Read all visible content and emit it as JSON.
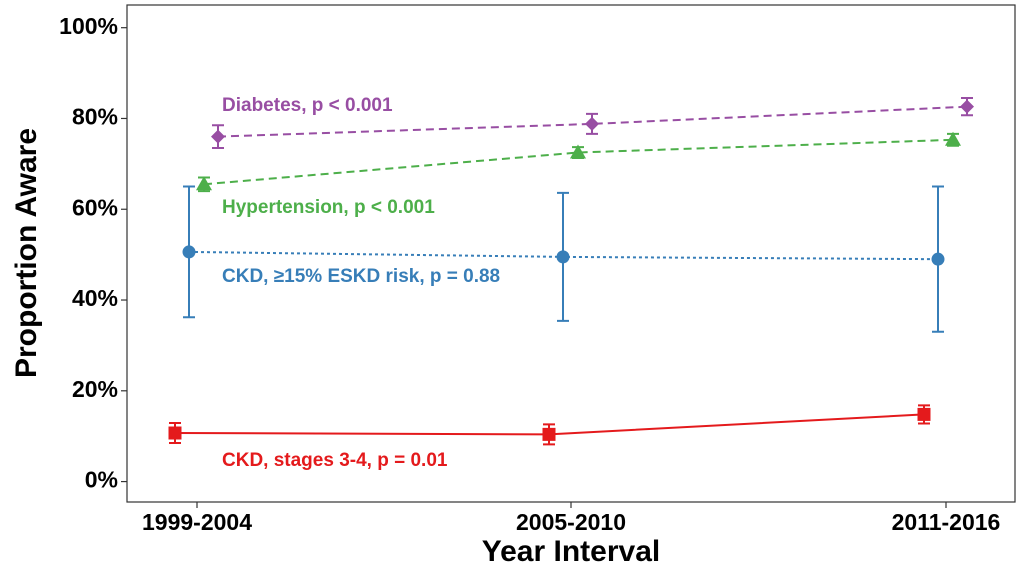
{
  "chart_data": {
    "type": "line",
    "x_label": "Year Interval",
    "y_label": "Proportion Aware",
    "categories": [
      "1999-2004",
      "2005-2010",
      "2011-2016"
    ],
    "ylim": [
      -4.5,
      105
    ],
    "yticks": [
      {
        "value": 0,
        "label": "0%"
      },
      {
        "value": 20,
        "label": "20%"
      },
      {
        "value": 40,
        "label": "40%"
      },
      {
        "value": 60,
        "label": "60%"
      },
      {
        "value": 80,
        "label": "80%"
      },
      {
        "value": 100,
        "label": "100%"
      }
    ],
    "grid": false,
    "series": [
      {
        "name": "Diabetes, p < 0.001",
        "color": "#984ea3",
        "marker": "diamond",
        "line_style": "dashed",
        "values": [
          76.0,
          78.8,
          82.6
        ],
        "errors": [
          2.5,
          2.2,
          1.9
        ]
      },
      {
        "name": "Hypertension, p < 0.001",
        "color": "#4daf4a",
        "marker": "triangle",
        "line_style": "dashed",
        "values": [
          65.5,
          72.5,
          75.3
        ],
        "errors": [
          1.5,
          1.2,
          1.3
        ]
      },
      {
        "name": "CKD, ≥15% ESKD risk, p = 0.88",
        "color": "#377eb8",
        "marker": "circle",
        "line_style": "dotted",
        "values": [
          50.6,
          49.5,
          49.0
        ],
        "errors": [
          14.4,
          14.1,
          16.0
        ]
      },
      {
        "name": "CKD, stages 3-4, p = 0.01",
        "color": "#e41a1c",
        "marker": "square",
        "line_style": "solid",
        "values": [
          10.7,
          10.4,
          14.8
        ],
        "errors": [
          2.2,
          2.2,
          2.0
        ]
      }
    ]
  }
}
